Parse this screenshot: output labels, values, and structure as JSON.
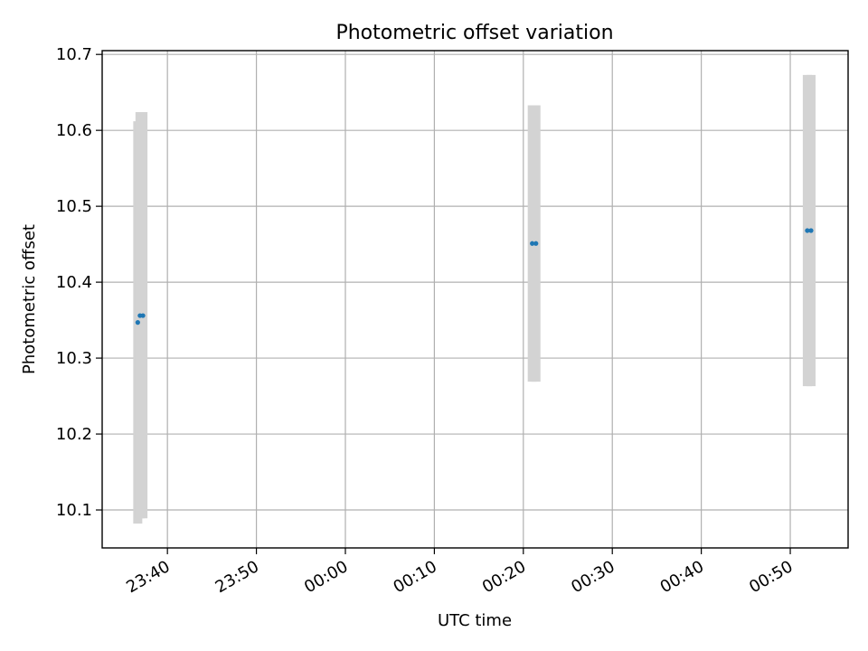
{
  "chart_data": {
    "type": "scatter",
    "title": "Photometric offset variation",
    "xlabel": "UTC time",
    "ylabel": "Photometric offset",
    "x_is_time": true,
    "xlim": [
      "23:32:40",
      "00:56:30"
    ],
    "ylim": [
      10.05,
      10.705
    ],
    "grid": true,
    "xticks": [
      "23:40",
      "23:50",
      "00:00",
      "00:10",
      "00:20",
      "00:30",
      "00:40",
      "00:50"
    ],
    "yticks": [
      "10.1",
      "10.2",
      "10.3",
      "10.4",
      "10.5",
      "10.6",
      "10.7"
    ],
    "colors": {
      "points": "#1f77b4",
      "error_bars": "#d3d3d3",
      "grid": "#b0b0b0",
      "axes": "#000000"
    },
    "points": [
      {
        "time": "23:36:40",
        "y": 10.347,
        "ylow": 10.082,
        "yhigh": 10.612
      },
      {
        "time": "23:36:55",
        "y": 10.356,
        "ylow": 10.089,
        "yhigh": 10.624
      },
      {
        "time": "23:37:15",
        "y": 10.356,
        "ylow": 10.089,
        "yhigh": 10.624
      },
      {
        "time": "00:21:00",
        "y": 10.451,
        "ylow": 10.269,
        "yhigh": 10.633
      },
      {
        "time": "00:21:25",
        "y": 10.451,
        "ylow": 10.269,
        "yhigh": 10.633
      },
      {
        "time": "00:51:55",
        "y": 10.468,
        "ylow": 10.263,
        "yhigh": 10.673
      },
      {
        "time": "00:52:20",
        "y": 10.468,
        "ylow": 10.263,
        "yhigh": 10.673
      }
    ]
  }
}
